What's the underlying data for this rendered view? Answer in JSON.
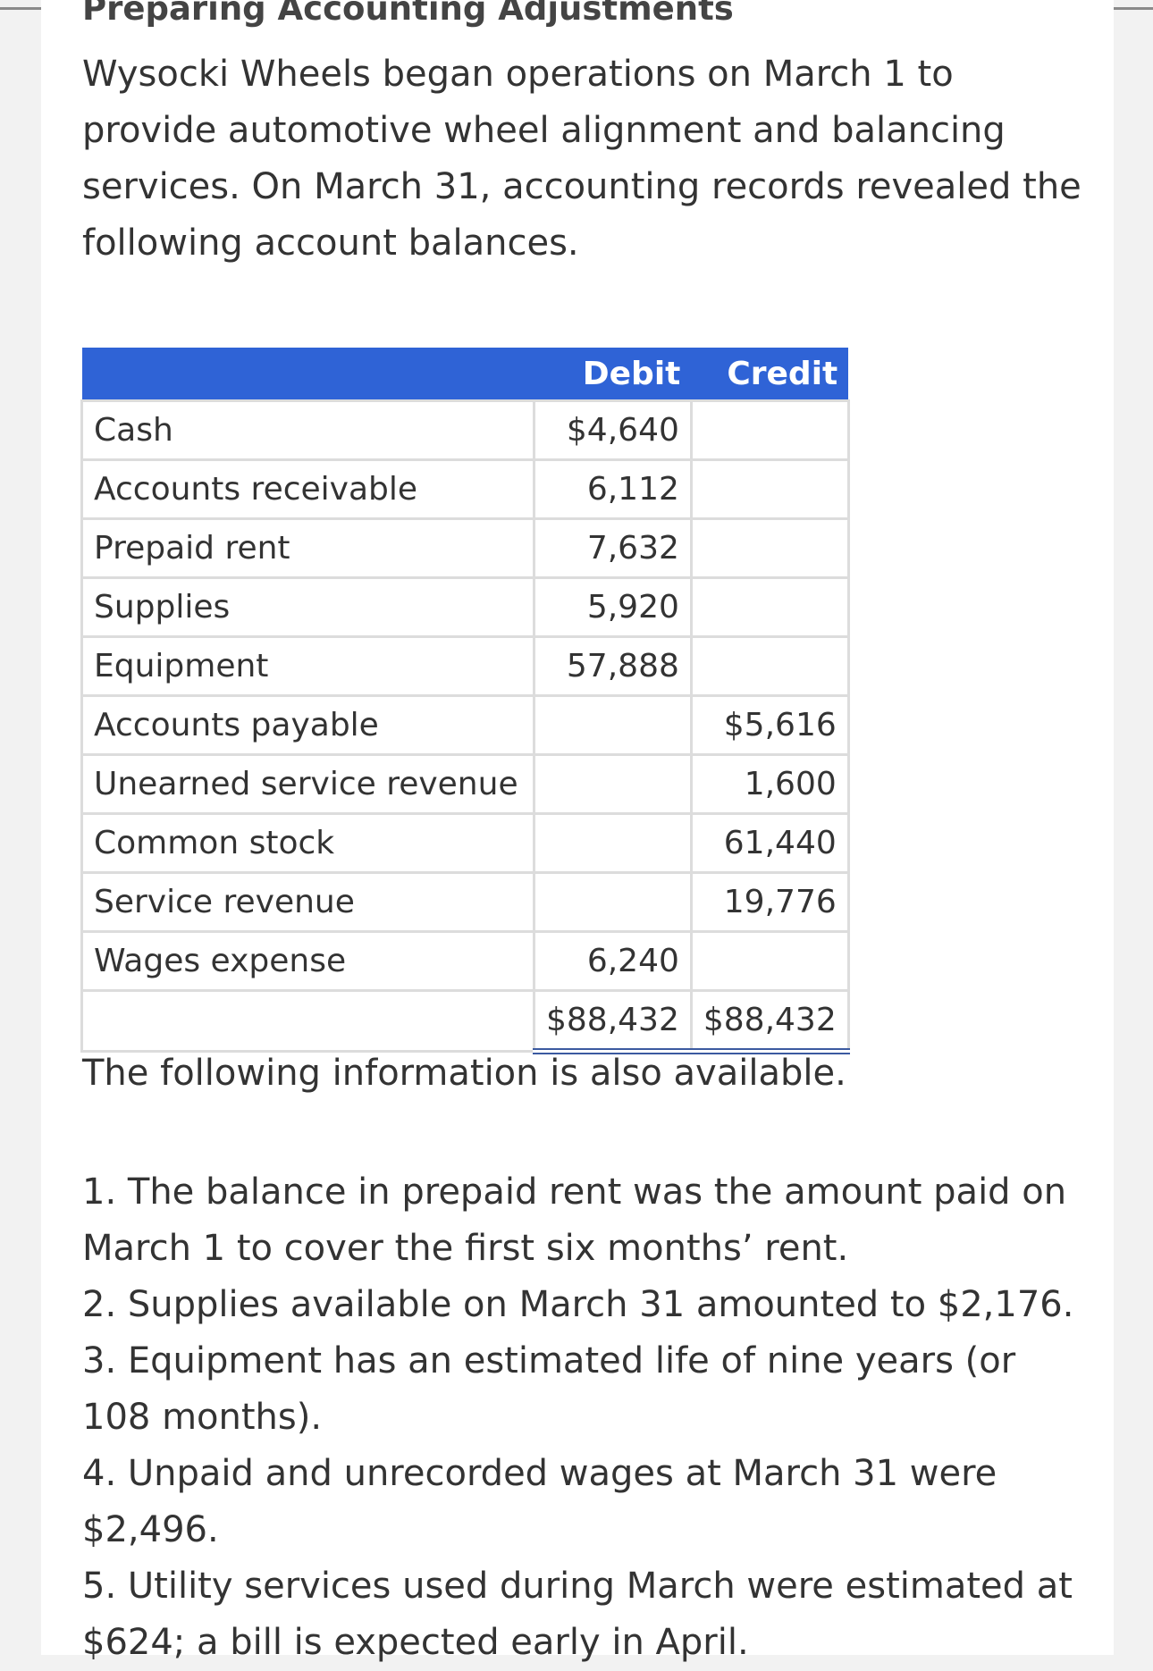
{
  "title": "Preparing Accounting Adjustments",
  "intro": "Wysocki Wheels began operations on March 1 to provide automotive wheel alignment and balancing services. On March 31, accounting records revealed the following account balances.",
  "table": {
    "headers": {
      "account": "",
      "debit": "Debit",
      "credit": "Credit"
    },
    "rows": [
      {
        "account": "Cash",
        "debit": "$4,640",
        "credit": ""
      },
      {
        "account": "Accounts receivable",
        "debit": "6,112",
        "credit": ""
      },
      {
        "account": "Prepaid rent",
        "debit": "7,632",
        "credit": ""
      },
      {
        "account": "Supplies",
        "debit": "5,920",
        "credit": ""
      },
      {
        "account": "Equipment",
        "debit": "57,888",
        "credit": ""
      },
      {
        "account": "Accounts payable",
        "debit": "",
        "credit": "$5,616"
      },
      {
        "account": "Unearned service revenue",
        "debit": "",
        "credit": "1,600"
      },
      {
        "account": "Common stock",
        "debit": "",
        "credit": "61,440"
      },
      {
        "account": "Service revenue",
        "debit": "",
        "credit": "19,776"
      },
      {
        "account": "Wages expense",
        "debit": "6,240",
        "credit": ""
      }
    ],
    "total": {
      "account": "",
      "debit": "$88,432",
      "credit": "$88,432"
    }
  },
  "followup": "The following information is also available.",
  "items": [
    "1. The balance in prepaid rent was the amount paid on March 1 to cover the first six months’ rent.",
    "2. Supplies available on March 31 amounted to $2,176.",
    "3. Equipment has an estimated life of nine years (or 108 months).",
    "4. Unpaid and unrecorded wages at March 31 were $2,496.",
    "5. Utility services used during March were estimated at $624; a bill is expected early in April."
  ]
}
